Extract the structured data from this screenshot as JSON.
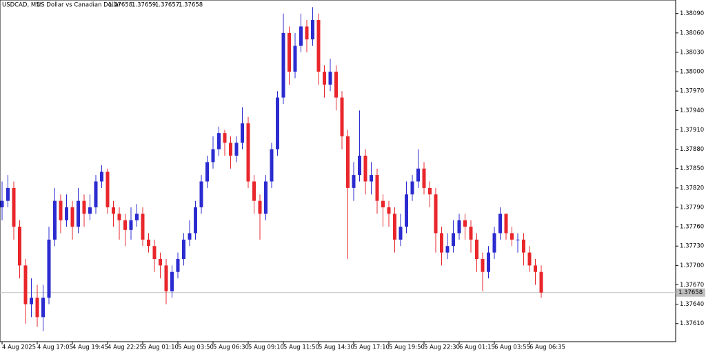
{
  "chart_data": {
    "type": "candlestick",
    "symbol": "USDCAD, M5:",
    "description": "US Dollar vs Canadian Dollar",
    "quote": [
      1.37658,
      1.37659,
      1.37657,
      1.37658
    ],
    "current_price": 1.37658,
    "up_color": "#2b2bd0",
    "down_color": "#e8262b",
    "ylim": [
      1.37582,
      1.38111
    ],
    "yticks": [
      {
        "value": 1.3761,
        "label": "1.37610"
      },
      {
        "value": 1.3764,
        "label": "1.37640"
      },
      {
        "value": 1.3767,
        "label": "1.37670"
      },
      {
        "value": 1.377,
        "label": "1.37700"
      },
      {
        "value": 1.3773,
        "label": "1.37730"
      },
      {
        "value": 1.3776,
        "label": "1.37760"
      },
      {
        "value": 1.3779,
        "label": "1.37790"
      },
      {
        "value": 1.3782,
        "label": "1.37820"
      },
      {
        "value": 1.3785,
        "label": "1.37850"
      },
      {
        "value": 1.3788,
        "label": "1.37880"
      },
      {
        "value": 1.3791,
        "label": "1.37910"
      },
      {
        "value": 1.3794,
        "label": "1.37940"
      },
      {
        "value": 1.3797,
        "label": "1.37970"
      },
      {
        "value": 1.38,
        "label": "1.38000"
      },
      {
        "value": 1.3803,
        "label": "1.38030"
      },
      {
        "value": 1.3806,
        "label": "1.38060"
      },
      {
        "value": 1.3809,
        "label": "1.38090"
      }
    ],
    "categories": [
      "4 Aug 2025",
      null,
      null,
      null,
      null,
      null,
      "4 Aug 17:05",
      null,
      null,
      null,
      null,
      null,
      "4 Aug 19:45",
      null,
      null,
      null,
      null,
      null,
      "4 Aug 22:25",
      null,
      null,
      null,
      null,
      null,
      "5 Aug 01:10",
      null,
      null,
      null,
      null,
      null,
      "5 Aug 03:50",
      null,
      null,
      null,
      null,
      null,
      "5 Aug 06:30",
      null,
      null,
      null,
      null,
      null,
      "5 Aug 09:10",
      null,
      null,
      null,
      null,
      null,
      "5 Aug 11:50",
      null,
      null,
      null,
      null,
      null,
      "5 Aug 14:30",
      null,
      null,
      null,
      null,
      null,
      "5 Aug 17:10",
      null,
      null,
      null,
      null,
      null,
      "5 Aug 19:50",
      null,
      null,
      null,
      null,
      null,
      "5 Aug 22:30",
      null,
      null,
      null,
      null,
      null,
      "6 Aug 01:15",
      null,
      null,
      null,
      null,
      null,
      "6 Aug 03:55",
      null,
      null,
      null,
      null,
      null,
      "6 Aug 06:35",
      null,
      null
    ],
    "open": [
      1.3779,
      1.378,
      1.3782,
      1.3776,
      1.377,
      1.3764,
      1.3765,
      1.3762,
      1.3765,
      1.3774,
      1.378,
      1.3777,
      1.3779,
      1.3776,
      1.378,
      1.3778,
      1.3779,
      1.3783,
      1.37845,
      1.3779,
      1.3778,
      1.3777,
      1.37755,
      1.3777,
      1.3778,
      1.3774,
      1.3773,
      1.3771,
      1.377,
      1.3766,
      1.3769,
      1.3771,
      1.3774,
      1.3775,
      1.3779,
      1.3783,
      1.3786,
      1.3788,
      1.37905,
      1.3789,
      1.3787,
      1.3789,
      1.3792,
      1.3783,
      1.378,
      1.3778,
      1.3783,
      1.3788,
      1.3796,
      1.3806,
      1.38,
      1.3804,
      1.3807,
      1.3805,
      1.3808,
      1.38,
      1.3798,
      1.38,
      1.3796,
      1.379,
      1.3782,
      1.3784,
      1.3787,
      1.3783,
      1.3784,
      1.378,
      1.3779,
      1.3778,
      1.3774,
      1.3776,
      1.3781,
      1.3783,
      1.3785,
      1.3782,
      1.3781,
      1.3775,
      1.3772,
      1.3773,
      1.3775,
      1.3777,
      1.3776,
      1.3774,
      1.3771,
      1.3769,
      1.3772,
      1.3775,
      1.3778,
      1.3775,
      1.3774,
      1.3774,
      1.3772,
      1.377,
      1.3769
    ],
    "high": [
      1.3783,
      1.3784,
      1.3783,
      1.3777,
      1.3771,
      1.3768,
      1.3767,
      1.3767,
      1.3776,
      1.3782,
      1.3781,
      1.3781,
      1.378,
      1.3782,
      1.3781,
      1.3781,
      1.3784,
      1.37855,
      1.3785,
      1.378,
      1.3779,
      1.3778,
      1.3779,
      1.37795,
      1.3779,
      1.3775,
      1.3774,
      1.3772,
      1.3771,
      1.377,
      1.3772,
      1.3775,
      1.3777,
      1.378,
      1.3784,
      1.3787,
      1.379,
      1.37915,
      1.3791,
      1.379,
      1.379,
      1.37945,
      1.3793,
      1.3784,
      1.3781,
      1.3784,
      1.3789,
      1.3797,
      1.3809,
      1.3807,
      1.3806,
      1.3809,
      1.3808,
      1.381,
      1.3809,
      1.3801,
      1.3802,
      1.3801,
      1.3797,
      1.3791,
      1.3786,
      1.3794,
      1.3788,
      1.3786,
      1.3785,
      1.3781,
      1.378,
      1.3779,
      1.3778,
      1.3783,
      1.3784,
      1.3788,
      1.3786,
      1.3783,
      1.3782,
      1.3776,
      1.3775,
      1.3777,
      1.3778,
      1.3778,
      1.3777,
      1.3775,
      1.3772,
      1.3773,
      1.3776,
      1.3779,
      1.3778,
      1.3776,
      1.3775,
      1.3775,
      1.3773,
      1.3771,
      1.377
    ],
    "low": [
      1.3777,
      1.3779,
      1.3774,
      1.3768,
      1.3761,
      1.3762,
      1.37605,
      1.37598,
      1.3764,
      1.3773,
      1.3775,
      1.3776,
      1.3774,
      1.3775,
      1.3776,
      1.3777,
      1.3778,
      1.3782,
      1.3778,
      1.3776,
      1.3774,
      1.3773,
      1.3774,
      1.3776,
      1.3773,
      1.3772,
      1.3769,
      1.3768,
      1.3764,
      1.3765,
      1.3768,
      1.377,
      1.3773,
      1.3774,
      1.3778,
      1.3782,
      1.3785,
      1.3787,
      1.3787,
      1.3785,
      1.3786,
      1.3788,
      1.3782,
      1.3778,
      1.3774,
      1.3777,
      1.3782,
      1.3787,
      1.3795,
      1.3798,
      1.3799,
      1.3803,
      1.3803,
      1.3804,
      1.3798,
      1.3796,
      1.3797,
      1.3794,
      1.3788,
      1.3771,
      1.378,
      1.3783,
      1.3781,
      1.3781,
      1.3778,
      1.3776,
      1.3776,
      1.3772,
      1.3773,
      1.3775,
      1.378,
      1.3782,
      1.3781,
      1.3779,
      1.3772,
      1.377,
      1.3771,
      1.3772,
      1.3774,
      1.3774,
      1.3772,
      1.3769,
      1.3766,
      1.3768,
      1.3771,
      1.3774,
      1.3774,
      1.3773,
      1.3772,
      1.377,
      1.3769,
      1.3767,
      1.3765
    ],
    "close": [
      1.378,
      1.3782,
      1.3776,
      1.377,
      1.3764,
      1.3765,
      1.3762,
      1.3765,
      1.3774,
      1.378,
      1.3777,
      1.3779,
      1.3776,
      1.378,
      1.3778,
      1.3779,
      1.3783,
      1.37845,
      1.3779,
      1.3778,
      1.3777,
      1.37755,
      1.3777,
      1.3778,
      1.3774,
      1.3773,
      1.3771,
      1.377,
      1.3766,
      1.3769,
      1.3771,
      1.3774,
      1.3775,
      1.3779,
      1.3783,
      1.3786,
      1.3788,
      1.37905,
      1.3789,
      1.3787,
      1.3789,
      1.3792,
      1.3783,
      1.378,
      1.3778,
      1.3783,
      1.3788,
      1.3796,
      1.3806,
      1.38,
      1.3804,
      1.3807,
      1.3805,
      1.3808,
      1.38,
      1.3798,
      1.38,
      1.3796,
      1.379,
      1.3782,
      1.3784,
      1.3787,
      1.3783,
      1.3784,
      1.378,
      1.3779,
      1.3778,
      1.3774,
      1.3776,
      1.3781,
      1.3783,
      1.3785,
      1.3782,
      1.3781,
      1.3775,
      1.3772,
      1.3773,
      1.3775,
      1.3777,
      1.3776,
      1.3774,
      1.3771,
      1.3769,
      1.3772,
      1.3775,
      1.3778,
      1.3775,
      1.3774,
      1.3774,
      1.3772,
      1.377,
      1.3769,
      1.37658
    ]
  }
}
